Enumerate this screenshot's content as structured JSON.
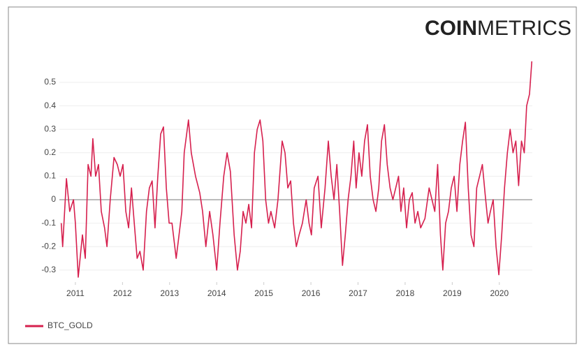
{
  "logo": {
    "bold": "COIN",
    "light": "METRICS"
  },
  "chart_data": {
    "type": "line",
    "x": [
      2010.7,
      2010.73,
      2010.81,
      2010.88,
      2010.96,
      2011.0,
      2011.06,
      2011.15,
      2011.21,
      2011.27,
      2011.33,
      2011.37,
      2011.43,
      2011.49,
      2011.55,
      2011.62,
      2011.67,
      2011.74,
      2011.82,
      2011.89,
      2011.95,
      2012.01,
      2012.07,
      2012.13,
      2012.19,
      2012.25,
      2012.31,
      2012.37,
      2012.44,
      2012.51,
      2012.57,
      2012.63,
      2012.69,
      2012.75,
      2012.81,
      2012.87,
      2012.93,
      2012.99,
      2013.05,
      2013.14,
      2013.2,
      2013.26,
      2013.31,
      2013.4,
      2013.46,
      2013.55,
      2013.64,
      2013.7,
      2013.77,
      2013.85,
      2013.92,
      2014.0,
      2014.07,
      2014.15,
      2014.22,
      2014.29,
      2014.37,
      2014.44,
      2014.5,
      2014.56,
      2014.62,
      2014.68,
      2014.74,
      2014.8,
      2014.86,
      2014.92,
      2014.98,
      2015.04,
      2015.1,
      2015.15,
      2015.23,
      2015.3,
      2015.39,
      2015.45,
      2015.51,
      2015.57,
      2015.63,
      2015.69,
      2015.75,
      2015.82,
      2015.9,
      2015.96,
      2016.01,
      2016.07,
      2016.15,
      2016.22,
      2016.3,
      2016.37,
      2016.43,
      2016.49,
      2016.55,
      2016.61,
      2016.67,
      2016.73,
      2016.79,
      2016.85,
      2016.91,
      2016.96,
      2017.02,
      2017.08,
      2017.14,
      2017.2,
      2017.26,
      2017.32,
      2017.38,
      2017.44,
      2017.5,
      2017.56,
      2017.62,
      2017.68,
      2017.74,
      2017.8,
      2017.86,
      2017.91,
      2017.97,
      2018.03,
      2018.09,
      2018.15,
      2018.21,
      2018.27,
      2018.33,
      2018.42,
      2018.51,
      2018.57,
      2018.63,
      2018.69,
      2018.75,
      2018.8,
      2018.86,
      2018.92,
      2018.98,
      2019.04,
      2019.1,
      2019.16,
      2019.22,
      2019.28,
      2019.34,
      2019.4,
      2019.46,
      2019.52,
      2019.58,
      2019.64,
      2019.7,
      2019.76,
      2019.81,
      2019.87,
      2019.93,
      2019.99,
      2020.05,
      2020.11,
      2020.17,
      2020.23,
      2020.29,
      2020.35,
      2020.41,
      2020.47,
      2020.53,
      2020.58,
      2020.64,
      2020.69
    ],
    "series": [
      {
        "name": "BTC_GOLD",
        "color": "#d6204e",
        "values": [
          -0.1,
          -0.2,
          0.09,
          -0.05,
          0.0,
          -0.1,
          -0.33,
          -0.15,
          -0.25,
          0.15,
          0.1,
          0.26,
          0.1,
          0.15,
          -0.05,
          -0.12,
          -0.2,
          0.0,
          0.18,
          0.15,
          0.1,
          0.15,
          -0.05,
          -0.12,
          0.05,
          -0.1,
          -0.25,
          -0.22,
          -0.3,
          -0.05,
          0.05,
          0.08,
          -0.12,
          0.1,
          0.28,
          0.31,
          0.05,
          -0.1,
          -0.1,
          -0.25,
          -0.15,
          -0.05,
          0.2,
          0.34,
          0.2,
          0.1,
          0.03,
          -0.05,
          -0.2,
          -0.05,
          -0.15,
          -0.3,
          -0.1,
          0.1,
          0.2,
          0.12,
          -0.15,
          -0.3,
          -0.22,
          -0.05,
          -0.1,
          -0.02,
          -0.12,
          0.2,
          0.3,
          0.34,
          0.25,
          0.0,
          -0.1,
          -0.05,
          -0.12,
          0.0,
          0.25,
          0.2,
          0.05,
          0.08,
          -0.1,
          -0.2,
          -0.15,
          -0.1,
          0.0,
          -0.1,
          -0.15,
          0.05,
          0.1,
          -0.12,
          0.05,
          0.25,
          0.1,
          0.0,
          0.15,
          -0.05,
          -0.28,
          -0.15,
          0.0,
          0.1,
          0.25,
          0.05,
          0.2,
          0.1,
          0.25,
          0.32,
          0.1,
          0.0,
          -0.05,
          0.05,
          0.25,
          0.32,
          0.15,
          0.05,
          0.0,
          0.05,
          0.1,
          -0.05,
          0.05,
          -0.12,
          0.0,
          0.03,
          -0.1,
          -0.05,
          -0.12,
          -0.08,
          0.05,
          0.0,
          -0.05,
          0.15,
          -0.15,
          -0.3,
          -0.1,
          -0.05,
          0.05,
          0.1,
          -0.05,
          0.15,
          0.25,
          0.33,
          0.05,
          -0.15,
          -0.2,
          0.05,
          0.1,
          0.15,
          0.02,
          -0.1,
          -0.05,
          0.0,
          -0.2,
          -0.32,
          -0.15,
          0.05,
          0.2,
          0.3,
          0.2,
          0.25,
          0.06,
          0.25,
          0.2,
          0.4,
          0.45,
          0.59
        ]
      }
    ],
    "xlim": [
      2010.66,
      2020.7
    ],
    "xticks": [
      2011,
      2012,
      2013,
      2014,
      2015,
      2016,
      2017,
      2018,
      2019,
      2020
    ],
    "ylim": [
      -0.35,
      0.6
    ],
    "yticks": [
      -0.3,
      -0.2,
      -0.1,
      0,
      0.1,
      0.2,
      0.3,
      0.4,
      0.5
    ],
    "grid": true,
    "legend": "bottom-left"
  }
}
